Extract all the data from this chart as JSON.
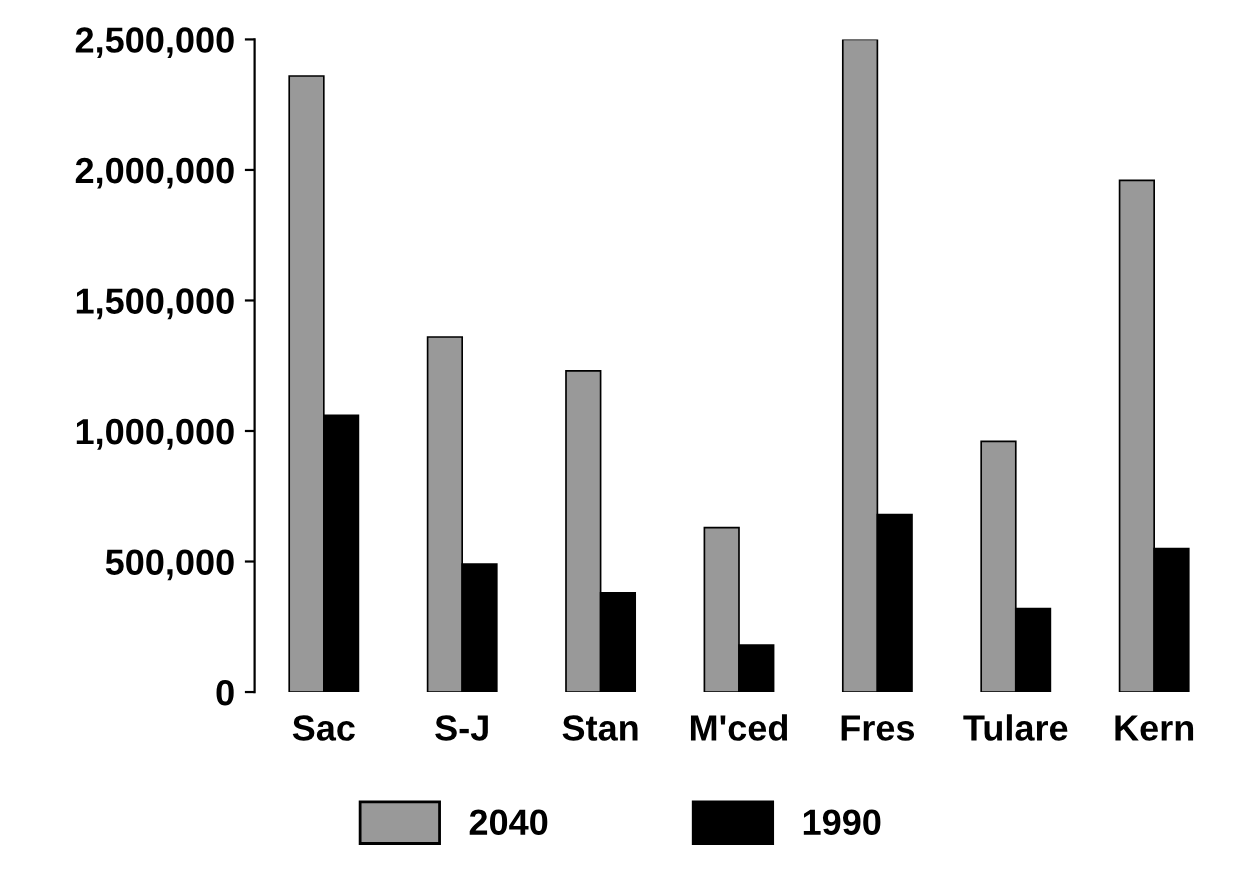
{
  "chart_data": {
    "type": "bar",
    "categories": [
      "Sac",
      "S-J",
      "Stan",
      "M'ced",
      "Fres",
      "Tulare",
      "Kern"
    ],
    "series": [
      {
        "name": "2040",
        "color": "#999999",
        "values": [
          2360000,
          1360000,
          1230000,
          630000,
          2500000,
          960000,
          1960000
        ]
      },
      {
        "name": "1990",
        "color": "#000000",
        "values": [
          1060000,
          490000,
          380000,
          180000,
          680000,
          320000,
          550000
        ]
      }
    ],
    "ylim": [
      0,
      2500000
    ],
    "yticks": [
      {
        "value": 0,
        "label": "0"
      },
      {
        "value": 500000,
        "label": "500,000"
      },
      {
        "value": 1000000,
        "label": "1,000,000"
      },
      {
        "value": 1500000,
        "label": "1,500,000"
      },
      {
        "value": 2000000,
        "label": "2,000,000"
      },
      {
        "value": 2500000,
        "label": "2,500,000"
      }
    ],
    "grid": false,
    "legend": "bottom"
  }
}
